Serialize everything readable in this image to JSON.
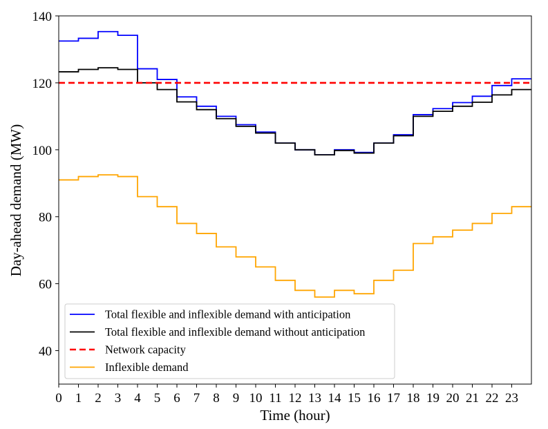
{
  "chart_data": {
    "type": "line",
    "step": "post",
    "xlabel": "Time (hour)",
    "ylabel": "Day-ahead demand (MW)",
    "xlim": [
      0,
      24
    ],
    "ylim": [
      30,
      140
    ],
    "xticks": [
      "0",
      "1",
      "2",
      "3",
      "4",
      "5",
      "6",
      "7",
      "8",
      "9",
      "10",
      "11",
      "12",
      "13",
      "14",
      "15",
      "16",
      "17",
      "18",
      "19",
      "20",
      "21",
      "22",
      "23"
    ],
    "yticks": [
      "40",
      "60",
      "80",
      "100",
      "120",
      "140"
    ],
    "legend_position": "lower-left",
    "series": [
      {
        "name": "Total flexible and inflexible demand with anticipation",
        "color": "#0000ff",
        "style": "solid",
        "values": [
          132.5,
          133.3,
          135.3,
          134.2,
          124.2,
          121.0,
          115.8,
          113.0,
          110.0,
          107.5,
          105.3,
          102.0,
          100.0,
          98.5,
          100.0,
          99.2,
          102.0,
          104.5,
          110.5,
          112.3,
          114.1,
          116.0,
          119.2,
          121.2
        ]
      },
      {
        "name": "Total flexible and inflexible demand without anticipation",
        "color": "#000000",
        "style": "solid",
        "values": [
          123.3,
          124.0,
          124.5,
          124.0,
          120.0,
          118.0,
          114.3,
          112.0,
          109.3,
          107.0,
          105.0,
          102.0,
          100.0,
          98.5,
          99.8,
          99.0,
          102.0,
          104.2,
          110.0,
          111.5,
          113.0,
          114.2,
          116.4,
          118.0
        ]
      },
      {
        "name": "Network capacity",
        "color": "#ff0000",
        "style": "dashed",
        "values": [
          120,
          120,
          120,
          120,
          120,
          120,
          120,
          120,
          120,
          120,
          120,
          120,
          120,
          120,
          120,
          120,
          120,
          120,
          120,
          120,
          120,
          120,
          120,
          120
        ]
      },
      {
        "name": "Inflexible demand",
        "color": "#ffa500",
        "style": "solid",
        "values": [
          91.0,
          92.0,
          92.5,
          92.0,
          86.0,
          83.0,
          78.0,
          75.0,
          71.0,
          68.0,
          65.0,
          61.0,
          58.0,
          56.0,
          58.0,
          57.0,
          61.0,
          64.0,
          72.0,
          74.0,
          76.0,
          78.0,
          81.0,
          83.0
        ]
      }
    ]
  }
}
